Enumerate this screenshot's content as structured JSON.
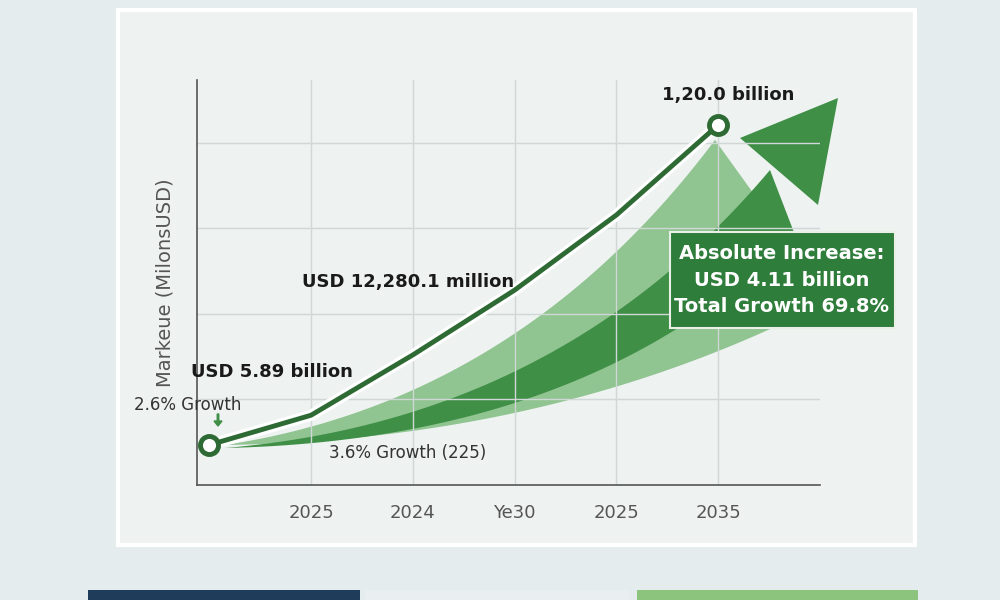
{
  "chart_data": {
    "type": "line",
    "ylabel": "Markeue (MilonsUSD)",
    "categories": [
      null,
      "2025",
      "2024",
      "Ye30",
      "2025",
      "2035"
    ],
    "values": [
      4890,
      5550,
      6890,
      8330,
      10000,
      12000
    ],
    "color": "#2e6b34",
    "marker": "o",
    "ylim": [
      4000,
      13000
    ],
    "yticks": [
      5900,
      7800,
      9700,
      11600
    ],
    "grid": true,
    "tick_labels": "x",
    "annotations": [
      "1,20.0 billion",
      "USD 12,280.1 million",
      "USD 5.89 billion",
      "2.6% Growth",
      "3.6% Growth (225)"
    ],
    "box": [
      "Absolute Increase:",
      "USD 4.11 billion",
      "Total Growth 69.8%"
    ]
  }
}
